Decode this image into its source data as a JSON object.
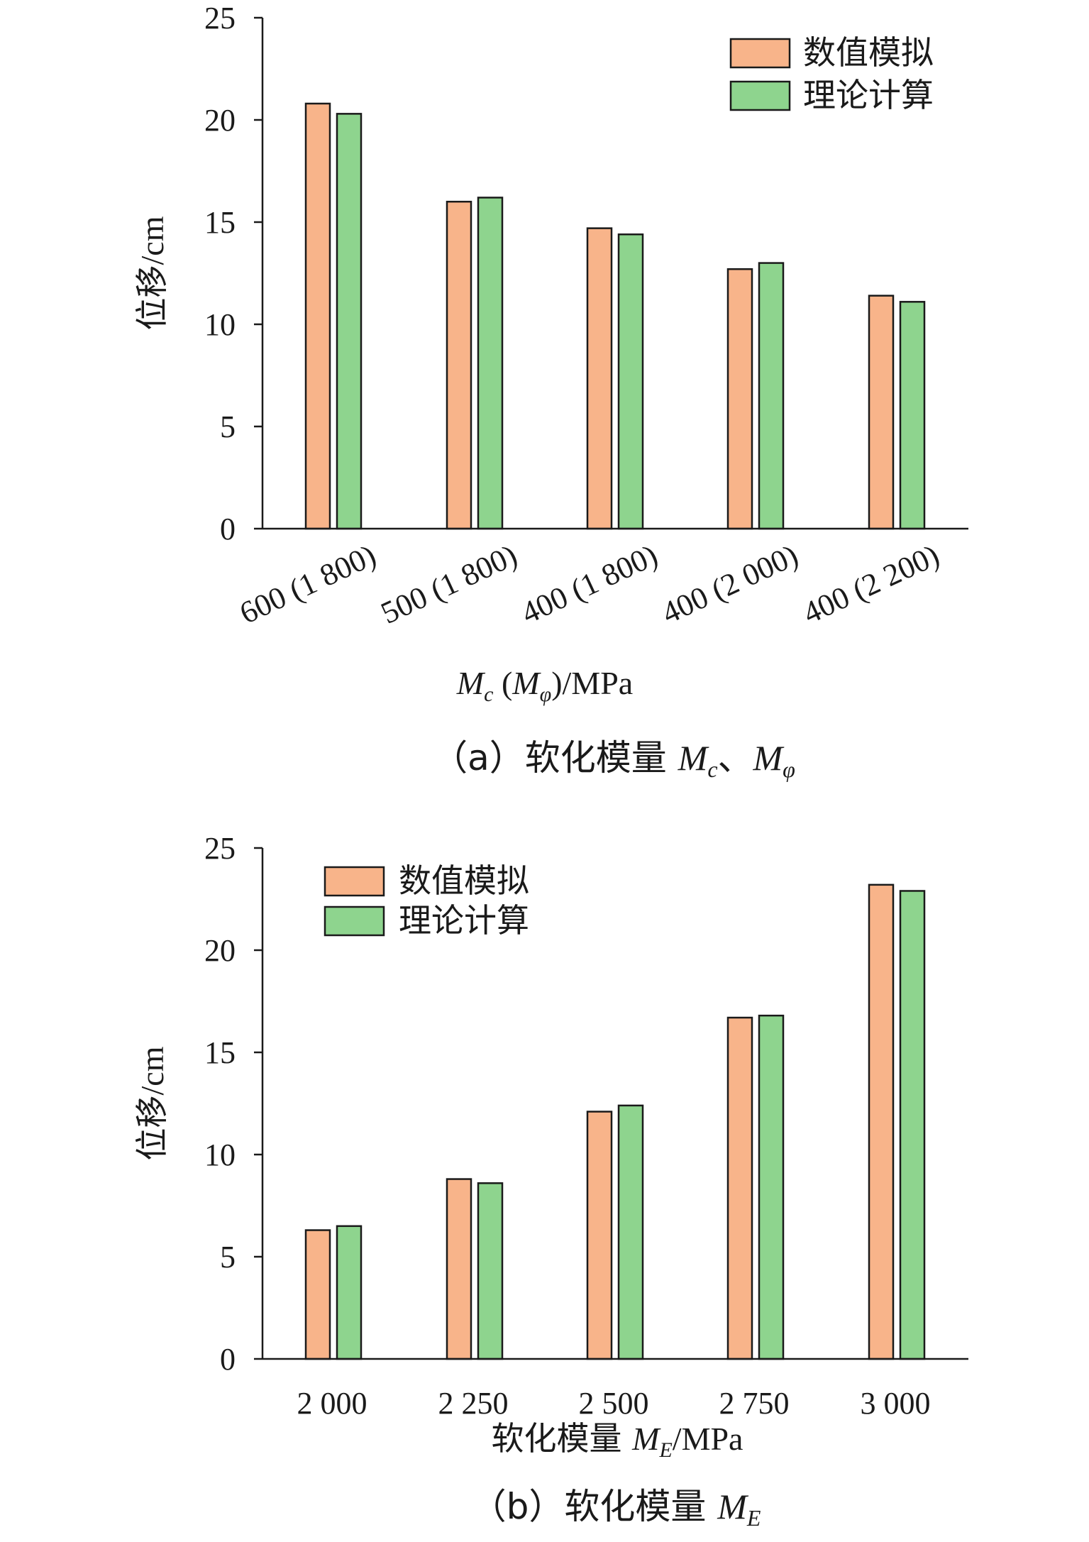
{
  "legend": {
    "numerical": "数值模拟",
    "theory": "理论计算"
  },
  "colors": {
    "numerical": "#f8b48a",
    "theory": "#8ed48e",
    "stroke": "#1a1a1a"
  },
  "chart_data": [
    {
      "type": "bar",
      "categories": [
        "600 (1 800)",
        "500 (1 800)",
        "400 (1 800)",
        "400 (2 000)",
        "400 (2 200)"
      ],
      "series": [
        {
          "name": "数值模拟",
          "values": [
            20.8,
            16.0,
            14.7,
            12.7,
            11.4
          ]
        },
        {
          "name": "理论计算",
          "values": [
            20.3,
            16.2,
            14.4,
            13.0,
            11.1
          ]
        }
      ],
      "ylabel": "位移/cm",
      "xlabel": {
        "m1": "M",
        "s1": "c",
        "mid": " (",
        "m2": "M",
        "s2": "φ",
        "end": ")/MPa"
      },
      "caption": {
        "prefix": "（a）软化模量 ",
        "m1": "M",
        "s1": "c",
        "sep": "、",
        "m2": "M",
        "s2": "φ"
      },
      "yticks": [
        "0",
        "5",
        "10",
        "15",
        "20",
        "25"
      ],
      "ylim": [
        0,
        25
      ],
      "legend_position": "top-right"
    },
    {
      "type": "bar",
      "categories": [
        "2 000",
        "2 250",
        "2 500",
        "2 750",
        "3 000"
      ],
      "series": [
        {
          "name": "数值模拟",
          "values": [
            6.3,
            8.8,
            12.1,
            16.7,
            23.2
          ]
        },
        {
          "name": "理论计算",
          "values": [
            6.5,
            8.6,
            12.4,
            16.8,
            22.9
          ]
        }
      ],
      "ylabel": "位移/cm",
      "xlabel": {
        "prefix": "软化模量 ",
        "m1": "M",
        "s1": "E",
        "end": "/MPa"
      },
      "caption": {
        "prefix": "（b）软化模量 ",
        "m1": "M",
        "s1": "E"
      },
      "yticks": [
        "0",
        "5",
        "10",
        "15",
        "20",
        "25"
      ],
      "ylim": [
        0,
        25
      ],
      "legend_position": "top-left"
    }
  ]
}
